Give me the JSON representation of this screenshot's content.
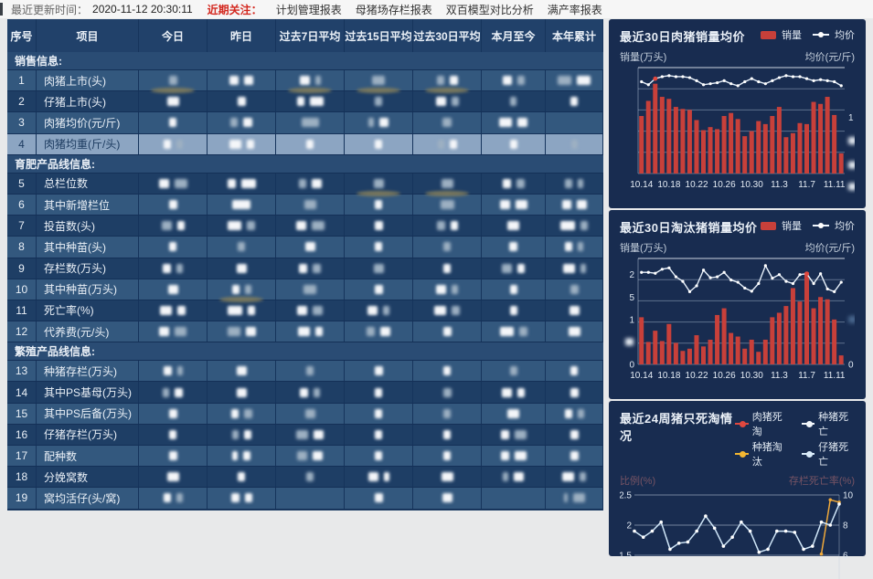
{
  "topbar": {
    "update_label": "最近更新时间：",
    "update_time": "2020-11-12 20:30:11",
    "focus_label": "近期关注：",
    "links": [
      "计划管理报表",
      "母猪场存栏报表",
      "双百模型对比分析",
      "满产率报表"
    ]
  },
  "table": {
    "headers": [
      "序号",
      "项目",
      "今日",
      "昨日",
      "过去7日平均",
      "过去15日平均",
      "过去30日平均",
      "本月至今",
      "本年累计"
    ],
    "values_redacted": true,
    "rows": [
      {
        "type": "section",
        "label": "销售信息:"
      },
      {
        "type": "data",
        "n": "1",
        "label": "肉猪上市(头)",
        "shade": "a",
        "cells": [
          [
            "g9"
          ],
          [
            "10",
            "10"
          ],
          [
            "11",
            "g6"
          ],
          [
            "g14"
          ],
          [
            "g8",
            "9"
          ],
          [
            "10",
            "g8"
          ],
          [
            "g15",
            "15"
          ]
        ]
      },
      {
        "type": "data",
        "n": "2",
        "label": "仔猪上市(头)",
        "shade": "b",
        "tan": [
          0,
          2,
          3,
          4
        ],
        "cells": [
          [
            "13"
          ],
          [
            "9"
          ],
          [
            "8",
            "15"
          ],
          [
            "g8"
          ],
          [
            "11",
            "g8"
          ],
          [
            "g7"
          ],
          [
            "8"
          ]
        ]
      },
      {
        "type": "data",
        "n": "3",
        "label": "肉猪均价(元/斤)",
        "shade": "a",
        "cells": [
          [
            "8"
          ],
          [
            "g8",
            "10"
          ],
          [
            "g19"
          ],
          [
            "g6",
            "10"
          ],
          [
            "g10"
          ],
          [
            "14",
            "11"
          ],
          []
        ]
      },
      {
        "type": "data",
        "n": "4",
        "label": "肉猪均重(斤/头)",
        "shade": "hl",
        "cells": [
          [
            "8",
            "g7"
          ],
          [
            "13",
            "8"
          ],
          [
            "8"
          ],
          [
            "8"
          ],
          [
            "g7",
            "8"
          ],
          [
            "8"
          ],
          [
            "g7"
          ]
        ]
      },
      {
        "type": "section",
        "label": "育肥产品线信息:"
      },
      {
        "type": "data",
        "n": "5",
        "label": "总栏位数",
        "shade": "b",
        "cells": [
          [
            "11",
            "g14"
          ],
          [
            "9",
            "16"
          ],
          [
            "g8",
            "11"
          ],
          [
            "g11"
          ],
          [
            "g13"
          ],
          [
            "9",
            "g9"
          ],
          [
            "g8",
            "g6"
          ]
        ]
      },
      {
        "type": "data",
        "n": "6",
        "label": "其中新增栏位",
        "shade": "a",
        "tan": [
          3,
          4
        ],
        "cells": [
          [
            "9"
          ],
          [
            "20"
          ],
          [
            "g13"
          ],
          [
            "8"
          ],
          [
            "g15"
          ],
          [
            "11",
            "13"
          ],
          [
            "10",
            "11"
          ]
        ]
      },
      {
        "type": "data",
        "n": "7",
        "label": "投苗数(头)",
        "shade": "b",
        "cells": [
          [
            "g11",
            "8"
          ],
          [
            "15",
            "g9"
          ],
          [
            "11",
            "g14"
          ],
          [
            "9"
          ],
          [
            "g9",
            "8"
          ],
          [
            "13"
          ],
          [
            "16",
            "g8"
          ]
        ]
      },
      {
        "type": "data",
        "n": "8",
        "label": "其中种苗(头)",
        "shade": "a",
        "cells": [
          [
            "8"
          ],
          [
            "g8"
          ],
          [
            "11"
          ],
          [
            "8"
          ],
          [
            "g8"
          ],
          [
            "9"
          ],
          [
            "8",
            "g6"
          ]
        ]
      },
      {
        "type": "data",
        "n": "9",
        "label": "存栏数(万头)",
        "shade": "b",
        "cells": [
          [
            "9",
            "g7"
          ],
          [
            "11"
          ],
          [
            "9",
            "g9"
          ],
          [
            "g11"
          ],
          [
            "8"
          ],
          [
            "g11",
            "8"
          ],
          [
            "13",
            "g6"
          ]
        ]
      },
      {
        "type": "data",
        "n": "10",
        "label": "其中种苗(万头)",
        "shade": "a",
        "cells": [
          [
            "11"
          ],
          [
            "8",
            "g7"
          ],
          [
            "g14"
          ],
          [
            "9"
          ],
          [
            "11",
            "g7"
          ],
          [
            "8"
          ],
          [
            "g9"
          ]
        ]
      },
      {
        "type": "data",
        "n": "11",
        "label": "死亡率(%)",
        "shade": "b",
        "tan": [
          1
        ],
        "cells": [
          [
            "13",
            "9"
          ],
          [
            "16",
            "8"
          ],
          [
            "11",
            "g11"
          ],
          [
            "11",
            "g7"
          ],
          [
            "13",
            "g9"
          ],
          [
            "8"
          ],
          [
            "11"
          ]
        ]
      },
      {
        "type": "data",
        "n": "12",
        "label": "代养费(元/头)",
        "shade": "a",
        "cells": [
          [
            "11",
            "g13"
          ],
          [
            "g14",
            "11"
          ],
          [
            "13",
            "8"
          ],
          [
            "g9",
            "11"
          ],
          [
            "9"
          ],
          [
            "15",
            "g9"
          ],
          [
            "13"
          ]
        ]
      },
      {
        "type": "section",
        "label": "繁殖产品线信息:"
      },
      {
        "type": "data",
        "n": "13",
        "label": "种猪存栏(万头)",
        "shade": "a",
        "cells": [
          [
            "9",
            "g6"
          ],
          [
            "11"
          ],
          [
            "g8"
          ],
          [
            "9"
          ],
          [
            "8"
          ],
          [
            "g8"
          ],
          [
            "8"
          ]
        ]
      },
      {
        "type": "data",
        "n": "14",
        "label": "其中PS基母(万头)",
        "shade": "b",
        "cells": [
          [
            "g7",
            "9"
          ],
          [
            "11"
          ],
          [
            "9",
            "g7"
          ],
          [
            "8"
          ],
          [
            "g9"
          ],
          [
            "11",
            "8"
          ],
          [
            "9"
          ]
        ]
      },
      {
        "type": "data",
        "n": "15",
        "label": "其中PS后备(万头)",
        "shade": "a",
        "cells": [
          [
            "9"
          ],
          [
            "8",
            "g9"
          ],
          [
            "g11"
          ],
          [
            "8"
          ],
          [
            "g8"
          ],
          [
            "13"
          ],
          [
            "8",
            "g7"
          ]
        ]
      },
      {
        "type": "data",
        "n": "16",
        "label": "仔猪存栏(万头)",
        "shade": "b",
        "cells": [
          [
            "8"
          ],
          [
            "g7",
            "8"
          ],
          [
            "g13",
            "11"
          ],
          [
            "8"
          ],
          [
            "8"
          ],
          [
            "9",
            "g13"
          ],
          [
            "9"
          ]
        ]
      },
      {
        "type": "data",
        "n": "17",
        "label": "配种数",
        "shade": "a",
        "cells": [
          [
            "9"
          ],
          [
            "6",
            "8"
          ],
          [
            "g11",
            "11"
          ],
          [
            "8"
          ],
          [
            "8"
          ],
          [
            "9",
            "13"
          ],
          [
            "9"
          ]
        ]
      },
      {
        "type": "data",
        "n": "18",
        "label": "分娩窝数",
        "shade": "b",
        "cells": [
          [
            "13"
          ],
          [
            "8"
          ],
          [
            "g8"
          ],
          [
            "11",
            "6"
          ],
          [
            "13"
          ],
          [
            "g6",
            "11"
          ],
          [
            "13",
            "g7"
          ]
        ]
      },
      {
        "type": "data",
        "n": "19",
        "label": "窝均活仔(头/窝)",
        "shade": "a",
        "cells": [
          [
            "8",
            "g7"
          ],
          [
            "9",
            "8"
          ],
          [],
          [
            "9"
          ],
          [
            "11"
          ],
          [],
          [
            "g4",
            "g13"
          ]
        ]
      }
    ]
  },
  "chart_data": [
    {
      "type": "bar",
      "title": "最近30日肉猪销量均价",
      "legend": [
        "销量",
        "均价"
      ],
      "legend_colors": {
        "bar": "#c8403a",
        "line": "#eef5fc"
      },
      "ylabel_left": "销量(万头)",
      "ylabel_right": "均价(元/斤)",
      "x_tick_labels": [
        "10.14",
        "10.18",
        "10.22",
        "10.26",
        "10.30",
        "11.3",
        "11.7",
        "11.11"
      ],
      "x_tick_indices": [
        0,
        4,
        8,
        12,
        16,
        20,
        24,
        28
      ],
      "ylim": [
        0,
        1.05
      ],
      "bars": [
        0.57,
        0.72,
        0.89,
        0.76,
        0.74,
        0.66,
        0.64,
        0.63,
        0.53,
        0.43,
        0.46,
        0.44,
        0.57,
        0.6,
        0.54,
        0.37,
        0.42,
        0.52,
        0.49,
        0.57,
        0.66,
        0.36,
        0.4,
        0.5,
        0.49,
        0.71,
        0.69,
        0.76,
        0.58,
        0.2
      ],
      "line": [
        0.91,
        0.88,
        0.94,
        0.96,
        0.97,
        0.96,
        0.96,
        0.95,
        0.92,
        0.88,
        0.89,
        0.9,
        0.92,
        0.89,
        0.87,
        0.91,
        0.94,
        0.91,
        0.89,
        0.92,
        0.95,
        0.97,
        0.96,
        0.96,
        0.94,
        0.92,
        0.93,
        0.92,
        0.91,
        0.87
      ],
      "marker_index": 2,
      "left_ticks": [],
      "right_ticks": [
        {
          "t": "1",
          "v": 0.556
        },
        {
          "redacted": true,
          "v": 0.325
        },
        {
          "redacted": true,
          "v": 0.084
        },
        {
          "redacted": true,
          "v": -0.13
        }
      ]
    },
    {
      "type": "bar",
      "title": "最近30日淘汰猪销量均价",
      "legend": [
        "销量",
        "均价"
      ],
      "legend_colors": {
        "bar": "#c8403a",
        "line": "#eef5fc"
      },
      "ylabel_left": "销量(万头)",
      "ylabel_right": "均价(元/斤)",
      "x_tick_labels": [
        "10.14",
        "10.18",
        "10.22",
        "10.26",
        "10.30",
        "11.3",
        "11.7",
        "11.11"
      ],
      "x_tick_indices": [
        0,
        4,
        8,
        12,
        16,
        20,
        24,
        28
      ],
      "ylim": [
        0,
        2.36
      ],
      "bars": [
        1.05,
        0.5,
        0.75,
        0.52,
        0.9,
        0.48,
        0.3,
        0.35,
        0.65,
        0.4,
        0.55,
        1.1,
        1.25,
        0.7,
        0.62,
        0.35,
        0.55,
        0.28,
        0.55,
        1.05,
        1.15,
        1.3,
        1.7,
        1.4,
        2.05,
        1.25,
        1.5,
        1.45,
        1.0,
        0.2
      ],
      "line": [
        2.05,
        2.05,
        2.03,
        2.12,
        2.15,
        1.95,
        1.85,
        1.62,
        1.75,
        2.1,
        1.93,
        1.95,
        2.05,
        1.88,
        1.83,
        1.7,
        1.63,
        1.8,
        2.2,
        1.92,
        2.0,
        1.85,
        1.8,
        2.0,
        2.02,
        1.8,
        2.02,
        1.68,
        1.62,
        1.83
      ],
      "marker_index": 24,
      "left_ticks": [
        {
          "t": "2",
          "v": 2
        },
        {
          "t": "5",
          "v": 1.5
        },
        {
          "t": "1",
          "v": 1
        },
        {
          "redacted": true,
          "v": 0.5
        },
        {
          "t": "0",
          "v": 0
        }
      ],
      "right_ticks": [
        {
          "redacted": true,
          "dim": true,
          "v": 1.0
        },
        {
          "t": "0",
          "v": 0
        }
      ]
    },
    {
      "type": "line",
      "title": "最近24周猪只死淘情况",
      "legend": [
        "肉猪死淘",
        "种猪死亡",
        "种猪淘汰",
        "仔猪死亡"
      ],
      "legend_colors": [
        "#e0483f",
        "#f2f6fa",
        "#f2b632",
        "#d9ebf9"
      ],
      "ylabel_left": "比例(%)",
      "ylabel_right": "存栏死亡率(%)",
      "yticks_left": [
        "2.5",
        "2",
        "1.5"
      ],
      "yticks_right": [
        "10",
        "8",
        "6"
      ],
      "ylim_visible": [
        1.4,
        2.55
      ],
      "series": [
        {
          "name": "肉猪死淘",
          "color": "#e0483f",
          "values": []
        },
        {
          "name": "种猪死亡",
          "color": "#f2f6fa",
          "values": []
        },
        {
          "name": "种猪淘汰",
          "color": "#f0a93a",
          "values": [
            null,
            null,
            null,
            null,
            null,
            null,
            null,
            null,
            null,
            null,
            null,
            null,
            null,
            null,
            null,
            null,
            null,
            null,
            null,
            null,
            null,
            1.52,
            2.42,
            2.38
          ]
        },
        {
          "name": "仔猪死亡",
          "color": "#cfe6f8",
          "values": [
            1.9,
            1.8,
            1.9,
            2.05,
            1.6,
            1.7,
            1.72,
            1.9,
            2.15,
            1.95,
            1.65,
            1.8,
            2.05,
            1.9,
            1.55,
            1.6,
            1.9,
            1.9,
            1.88,
            1.6,
            1.65,
            2.05,
            2.0,
            2.35
          ]
        }
      ]
    }
  ]
}
